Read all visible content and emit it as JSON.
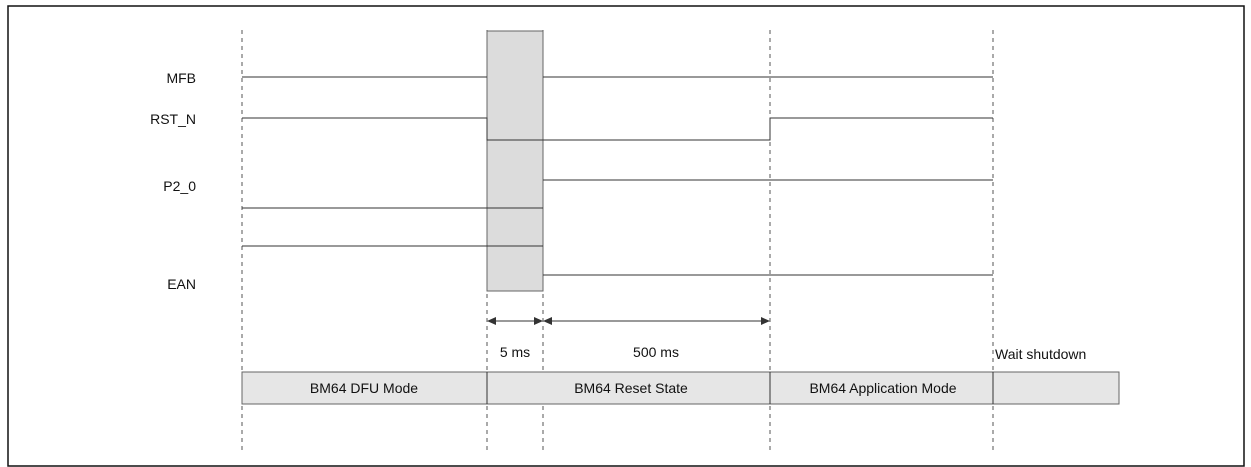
{
  "signals": [
    {
      "key": "mfb",
      "label": "MFB"
    },
    {
      "key": "rst",
      "label": "RST_N"
    },
    {
      "key": "p20",
      "label": "P2_0"
    },
    {
      "key": "ean",
      "label": "EAN"
    }
  ],
  "timings": {
    "t1": "5 ms",
    "t2": "500 ms",
    "after": "Wait shutdown"
  },
  "states": [
    {
      "key": "dfu",
      "label": "BM64 DFU Mode"
    },
    {
      "key": "reset",
      "label": "BM64 Reset State"
    },
    {
      "key": "app",
      "label": "BM64 Application Mode"
    }
  ]
}
